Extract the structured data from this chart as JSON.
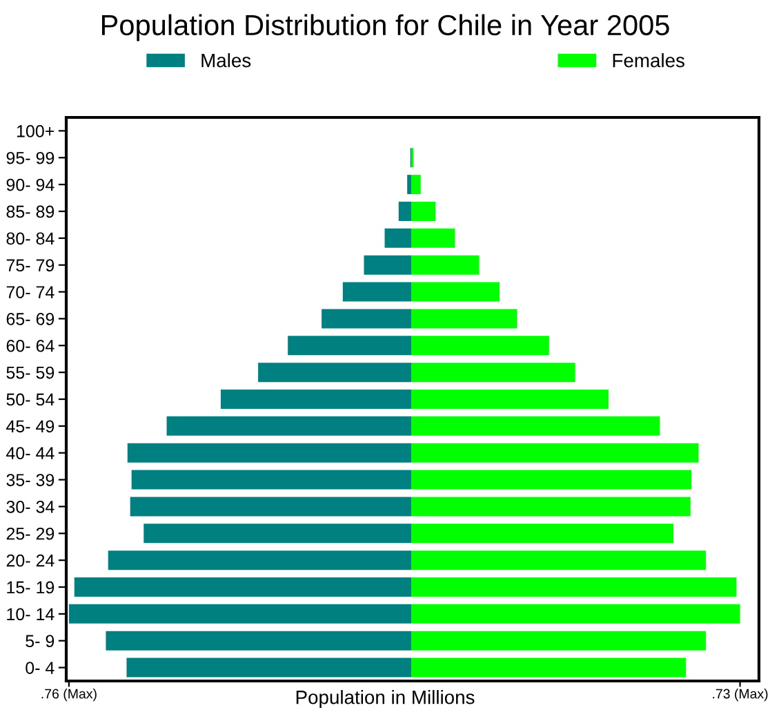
{
  "chart_data": {
    "type": "bar",
    "orientation": "horizontal",
    "title": "Population Distribution for Chile in Year 2005",
    "xlabel": "Population in Millions",
    "categories": [
      "100+",
      "95- 99",
      "90- 94",
      "85- 89",
      "80- 84",
      "75- 79",
      "70- 74",
      "65- 69",
      "60- 64",
      "55- 59",
      "50- 54",
      "45- 49",
      "40- 44",
      "35- 39",
      "30- 34",
      "25- 29",
      "20- 24",
      "15- 19",
      "10- 14",
      "5- 9",
      "0- 4"
    ],
    "series": [
      {
        "name": "Males",
        "color": "#008080",
        "values": [
          0,
          -0.002,
          -0.009,
          -0.028,
          -0.059,
          -0.105,
          -0.152,
          -0.199,
          -0.274,
          -0.34,
          -0.423,
          -0.543,
          -0.63,
          -0.621,
          -0.624,
          -0.594,
          -0.673,
          -0.748,
          -0.76,
          -0.678,
          -0.632
        ]
      },
      {
        "name": "Females",
        "color": "#00ff00",
        "values": [
          0,
          0.005,
          0.021,
          0.054,
          0.097,
          0.151,
          0.196,
          0.235,
          0.306,
          0.364,
          0.438,
          0.552,
          0.638,
          0.622,
          0.62,
          0.582,
          0.654,
          0.722,
          0.73,
          0.654,
          0.61
        ]
      }
    ],
    "xlim": [
      -0.766,
      0.772
    ],
    "xticks": [
      {
        "value": -0.76,
        "label": ".76 (Max)"
      },
      {
        "value": 0.73,
        "label": ".73 (Max)"
      }
    ],
    "stacked": true,
    "legend": "top",
    "grid": false
  }
}
